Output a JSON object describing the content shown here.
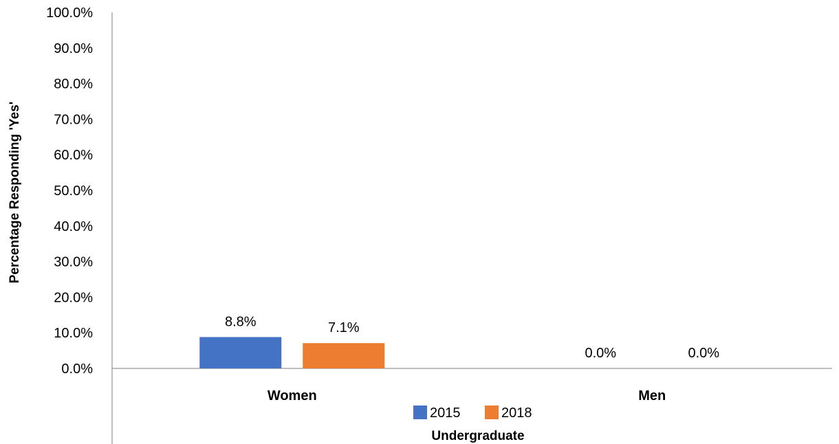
{
  "chart_data": {
    "type": "bar",
    "categories": [
      "Women",
      "Men"
    ],
    "series": [
      {
        "name": "2015",
        "values": [
          8.8,
          0.0
        ],
        "labels": [
          "8.8%",
          "0.0%"
        ],
        "color": "#4472C4"
      },
      {
        "name": "2018",
        "values": [
          7.1,
          0.0
        ],
        "labels": [
          "7.1%",
          "0.0%"
        ],
        "color": "#ED7D31"
      }
    ],
    "yticks": [
      "0.0%",
      "10.0%",
      "20.0%",
      "30.0%",
      "40.0%",
      "50.0%",
      "60.0%",
      "70.0%",
      "80.0%",
      "90.0%",
      "100.0%"
    ],
    "ylim": [
      0,
      100
    ],
    "ylabel": "Percentage Responding 'Yes'",
    "xlabel": "Undergraduate",
    "grid": false,
    "legend_position": "bottom"
  }
}
